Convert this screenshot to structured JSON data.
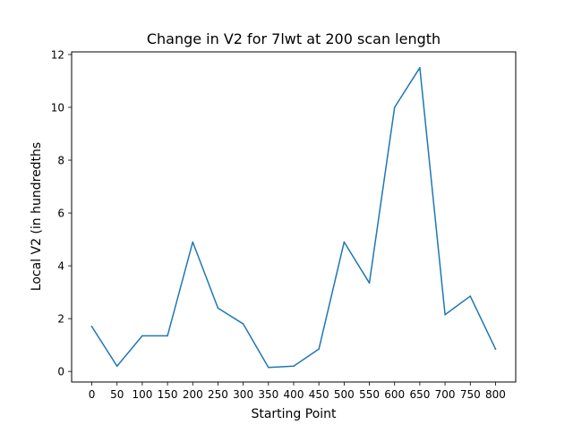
{
  "chart_data": {
    "type": "line",
    "title": "Change in V2 for 7lwt at 200 scan length",
    "xlabel": "Starting Point",
    "ylabel": "Local V2 (in hundredths",
    "x": [
      0,
      50,
      100,
      150,
      200,
      250,
      300,
      350,
      400,
      450,
      500,
      550,
      600,
      650,
      700,
      750,
      800
    ],
    "series": [
      {
        "values": [
          1.7,
          0.2,
          1.35,
          1.35,
          4.9,
          2.4,
          1.8,
          0.15,
          0.2,
          0.85,
          4.9,
          3.35,
          10.0,
          11.5,
          2.15,
          2.85,
          0.85
        ],
        "color": "#1f77b4"
      }
    ],
    "xticks": [
      "0",
      "50",
      "100",
      "150",
      "200",
      "250",
      "300",
      "350",
      "400",
      "450",
      "500",
      "550",
      "600",
      "650",
      "700",
      "750",
      "800"
    ],
    "yticks": [
      "0",
      "2",
      "4",
      "6",
      "8",
      "10",
      "12"
    ],
    "xlim": [
      -40,
      840
    ],
    "ylim": [
      -0.4,
      12.1
    ],
    "grid": false,
    "legend": "none"
  }
}
